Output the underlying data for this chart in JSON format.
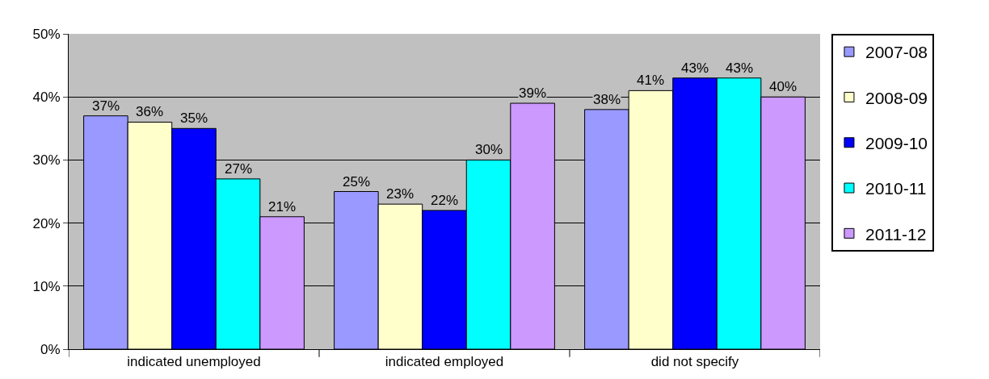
{
  "chart_data": {
    "type": "bar",
    "categories": [
      "indicated unemployed",
      "indicated employed",
      "did not specify"
    ],
    "series": [
      {
        "name": "2007-08",
        "color": "#9999ff",
        "values": [
          37,
          25,
          38
        ],
        "value_labels": [
          "37%",
          "25%",
          "38%"
        ]
      },
      {
        "name": "2008-09",
        "color": "#ffffcc",
        "values": [
          36,
          23,
          41
        ],
        "value_labels": [
          "36%",
          "23%",
          "41%"
        ]
      },
      {
        "name": "2009-10",
        "color": "#0000ff",
        "values": [
          35,
          22,
          43
        ],
        "value_labels": [
          "35%",
          "22%",
          "43%"
        ]
      },
      {
        "name": "2010-11",
        "color": "#00ffff",
        "values": [
          27,
          30,
          43
        ],
        "value_labels": [
          "27%",
          "30%",
          "43%"
        ]
      },
      {
        "name": "2011-12",
        "color": "#cc99ff",
        "values": [
          21,
          39,
          40
        ],
        "value_labels": [
          "21%",
          "39%",
          "40%"
        ]
      }
    ],
    "ylim": [
      0,
      50
    ],
    "yticks": [
      {
        "value": 0,
        "label": "0%"
      },
      {
        "value": 10,
        "label": "10%"
      },
      {
        "value": 20,
        "label": "20%"
      },
      {
        "value": 30,
        "label": "30%"
      },
      {
        "value": 40,
        "label": "40%"
      },
      {
        "value": 50,
        "label": "50%"
      }
    ],
    "grid": "y",
    "legend": "right"
  }
}
